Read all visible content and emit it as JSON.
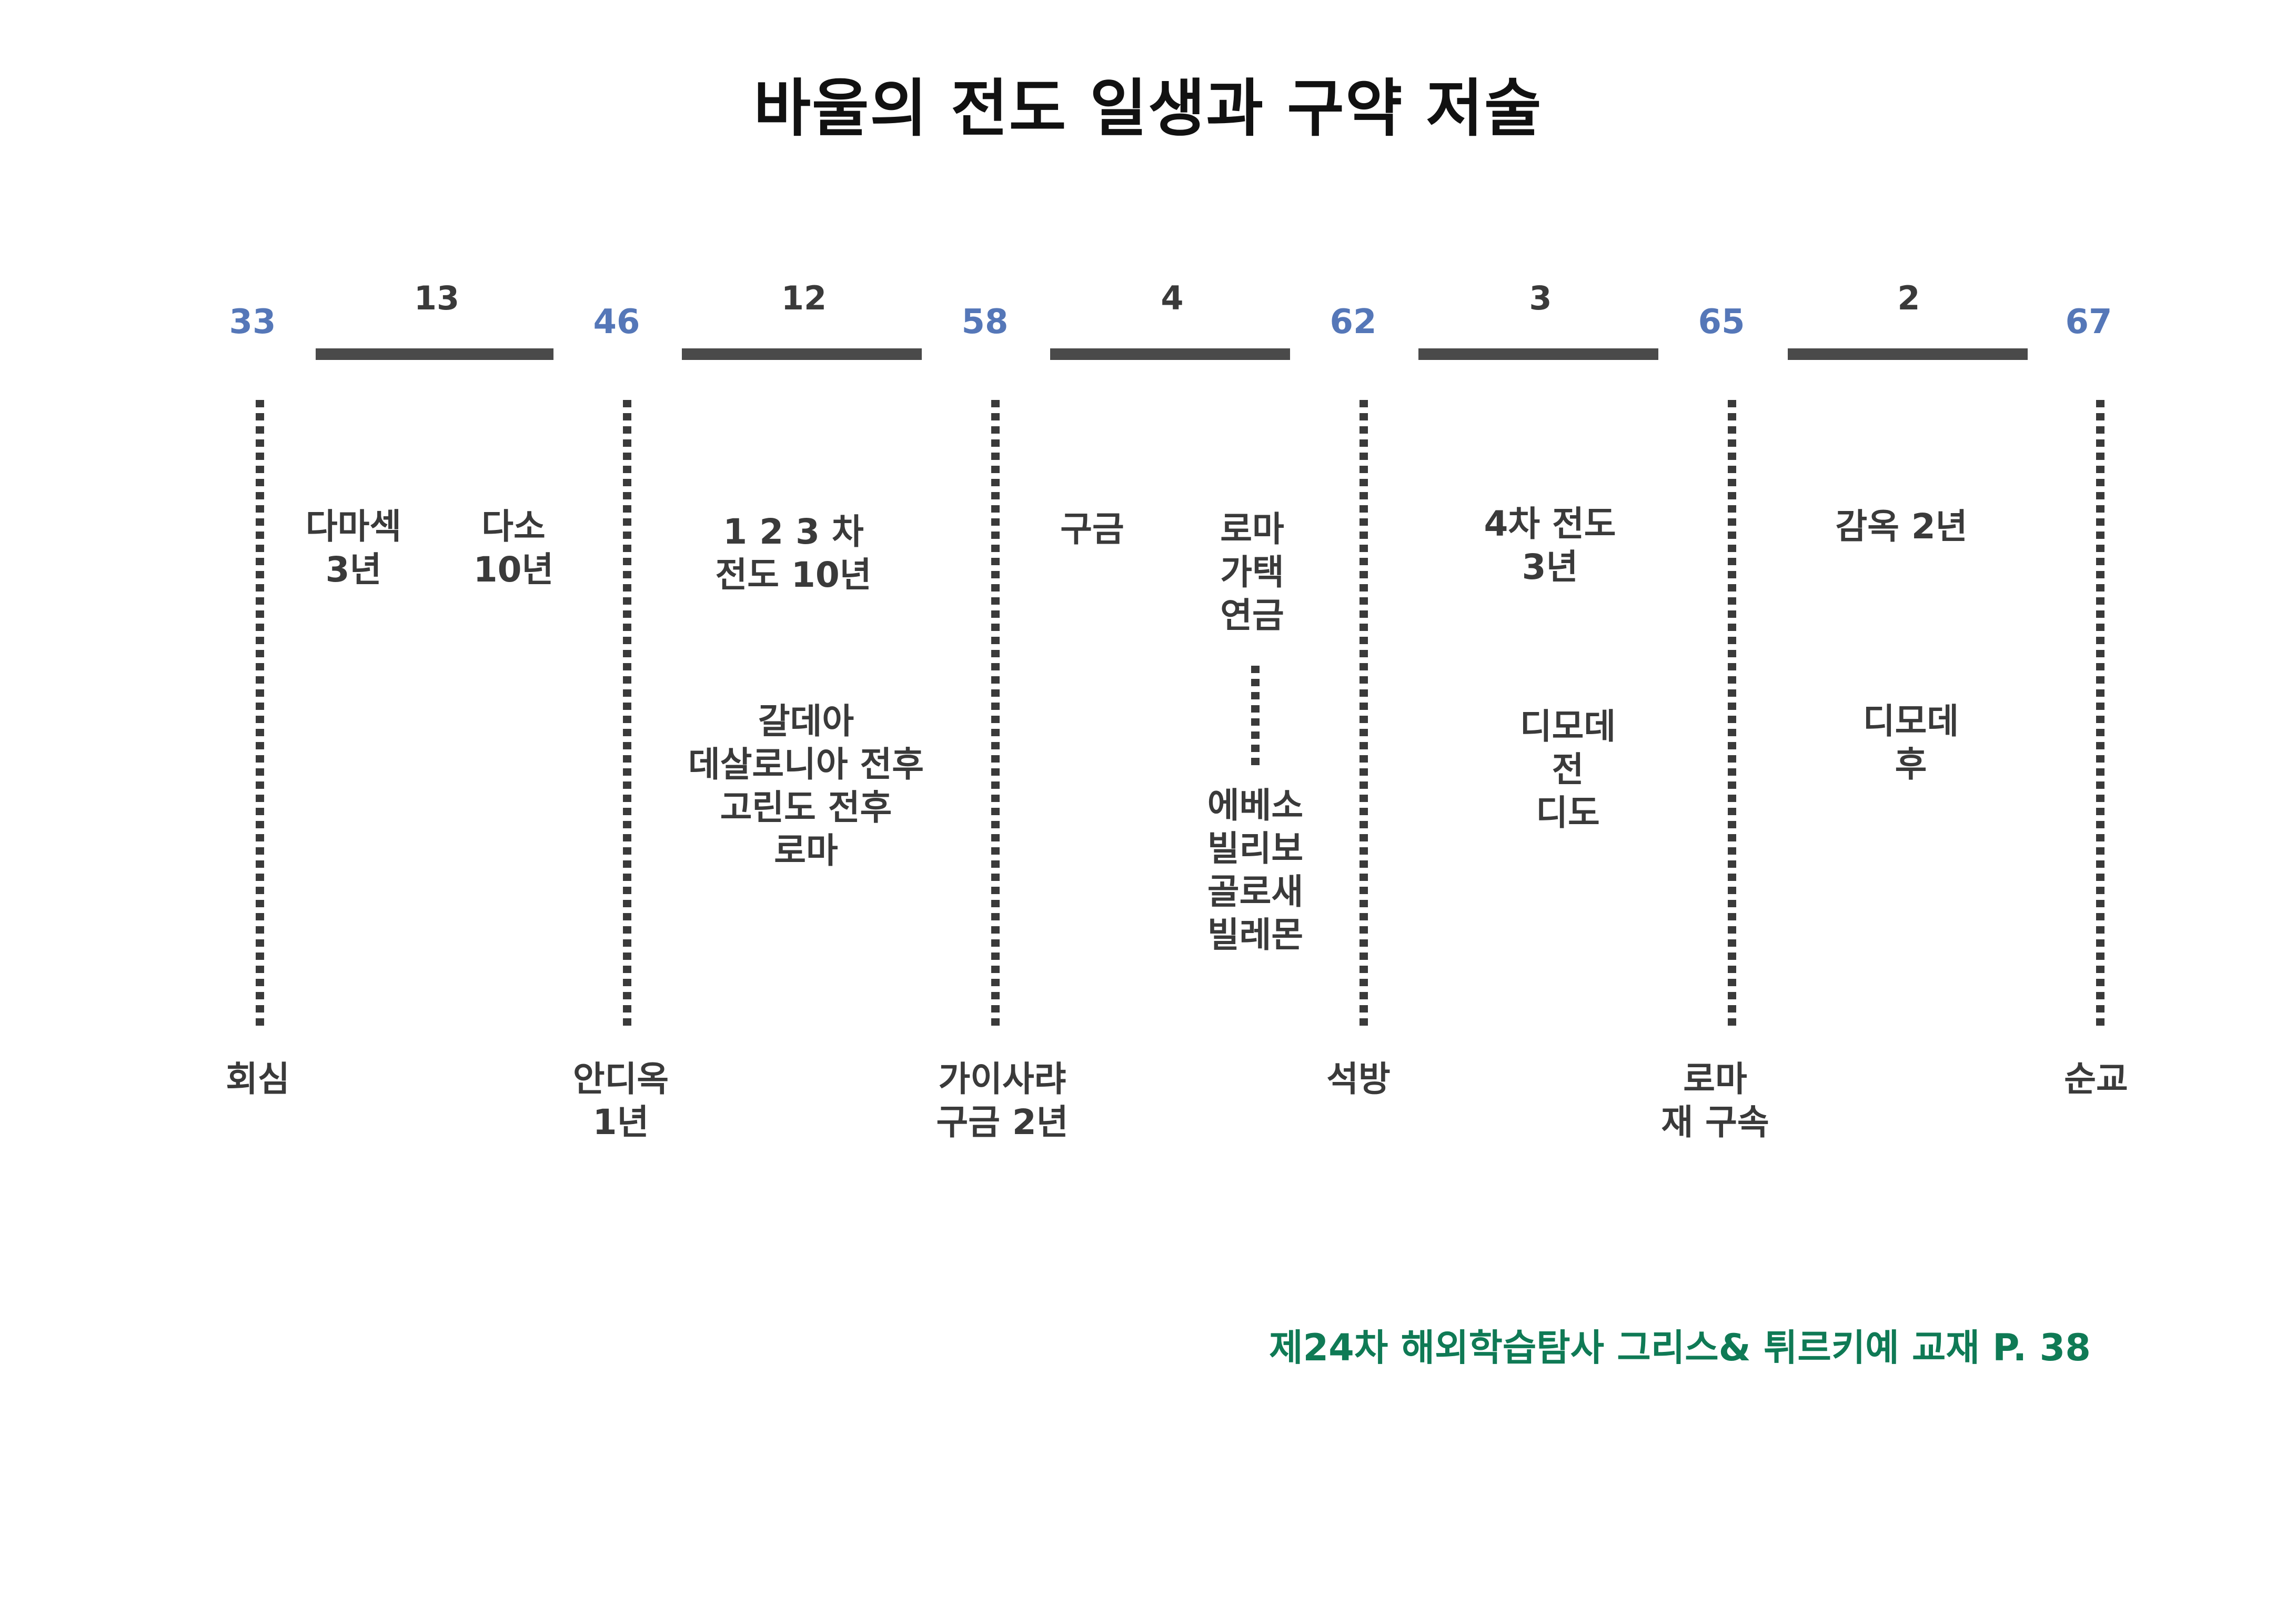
{
  "title": "바울의 전도 일생과 구약 저술",
  "years": [
    "33",
    "46",
    "58",
    "62",
    "65",
    "67"
  ],
  "durations": [
    "13",
    "12",
    "4",
    "3",
    "2"
  ],
  "notes": {
    "damascus": [
      "다마섹",
      "3년"
    ],
    "tarsus": [
      "다소",
      "10년"
    ],
    "missions_123": [
      "1 2 3 차",
      "전도 10년"
    ],
    "letters_1": [
      "갈데아",
      "데살로니아 전후",
      "고린도 전후",
      "로마"
    ],
    "custody": [
      "구금"
    ],
    "rome_house": [
      "로마",
      "가택",
      "연금"
    ],
    "letters_2": [
      "에베소",
      "빌리보",
      "골로새",
      "빌레몬"
    ],
    "mission_4": [
      "4차 전도",
      "3년"
    ],
    "letters_3": [
      "디모데",
      "전",
      "디도"
    ],
    "prison": [
      "감옥 2년"
    ],
    "letters_4": [
      "디모데",
      "후"
    ]
  },
  "events": [
    [
      "회심"
    ],
    [
      "안디옥",
      "1년"
    ],
    [
      "가이사랴",
      "구금 2년"
    ],
    [
      "석방"
    ],
    [
      "로마",
      "재 구속"
    ],
    [
      "순교"
    ]
  ],
  "source": "제24차 해외학습탐사 그리스& 튀르키예 교재  P. 38",
  "colors": {
    "year": "#5577b8",
    "source": "#0f7a55",
    "text": "#3a3a3a"
  }
}
